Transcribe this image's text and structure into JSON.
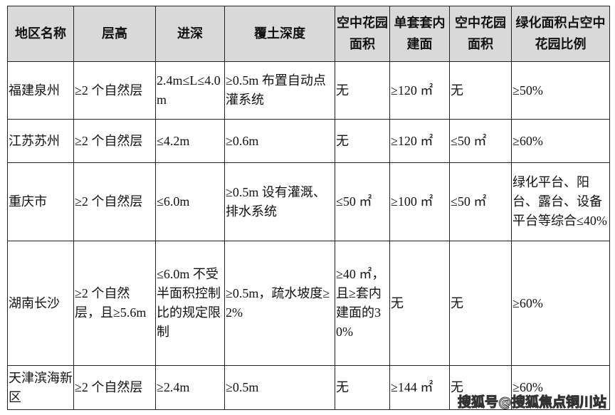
{
  "table": {
    "headers": [
      "地区名称",
      "层高",
      "进深",
      "覆土深度",
      "空中花园面积",
      "单套套内建面",
      "空中花园面积",
      "绿化面积占空中花园比例"
    ],
    "rows": [
      [
        "福建泉州",
        "≥2 个自然层",
        "2.4m≤L≤4.0m",
        "≥0.5m 布置自动点灌系统",
        "无",
        "≥120 ㎡",
        "无",
        "≥50%"
      ],
      [
        "江苏苏州",
        "≥2 个自然层",
        "≤4.2m",
        "≥0.6m",
        "无",
        "≥120 ㎡",
        "≤50 ㎡",
        "≥60%"
      ],
      [
        "重庆市",
        "≥2 个自然层",
        "≤6.0m",
        "≥0.5m 设有灌溉、排水系统",
        "≤50 ㎡",
        "≥100 ㎡",
        "≤50 ㎡",
        "绿化平台、阳台、露台、设备平台等综合≤40%"
      ],
      [
        "湖南长沙",
        "≥2 个自然层，且≥5.6m",
        "≤6.0m 不受半面积控制比的规定限制",
        "≥0.5m，疏水坡度≥2%",
        "≥40 ㎡，且≥套内建面的30%",
        "无",
        "无",
        "≥60%"
      ],
      [
        "天津滨海新区",
        "≥2 个自然层",
        "≥2.4m",
        "≥0.5m",
        "无",
        "≥144 ㎡",
        "无",
        "≥60%"
      ]
    ]
  },
  "watermark": "搜狐号@搜狐焦点铜川站"
}
